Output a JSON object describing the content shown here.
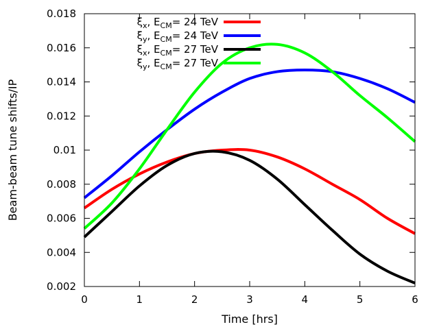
{
  "chart_data": {
    "type": "line",
    "title": "",
    "xlabel": "Time [hrs]",
    "ylabel": "Beam-beam tune shifts/IP",
    "xlim": [
      0,
      6
    ],
    "ylim": [
      0.002,
      0.018
    ],
    "xticks": [
      0,
      1,
      2,
      3,
      4,
      5,
      6
    ],
    "xtick_labels": [
      "0",
      "1",
      "2",
      "3",
      "4",
      "5",
      "6"
    ],
    "yticks": [
      0.002,
      0.004,
      0.006,
      0.008,
      0.01,
      0.012,
      0.014,
      0.016,
      0.018
    ],
    "ytick_labels": [
      "0.002",
      "0.004",
      "0.006",
      "0.008",
      "0.01",
      "0.012",
      "0.014",
      "0.016",
      "0.018"
    ],
    "grid": false,
    "legend_position": "top-left",
    "series": [
      {
        "name": "ξx, ECM= 24 TeV",
        "legend": {
          "sym": "ξ",
          "sub": "x",
          "sep": ", E",
          "esub": "CM",
          "rest": "= 24 TeV"
        },
        "color": "#ff0000",
        "x": [
          0,
          0.5,
          1,
          1.5,
          2,
          2.5,
          3,
          3.5,
          4,
          4.5,
          5,
          5.5,
          6
        ],
        "y": [
          0.0066,
          0.0077,
          0.0086,
          0.0093,
          0.0098,
          0.01,
          0.01,
          0.0096,
          0.0089,
          0.008,
          0.0071,
          0.006,
          0.0051
        ]
      },
      {
        "name": "ξy, ECM= 24 TeV",
        "legend": {
          "sym": "ξ",
          "sub": "y",
          "sep": ", E",
          "esub": "CM",
          "rest": "= 24 TeV"
        },
        "color": "#0000ff",
        "x": [
          0,
          0.5,
          1,
          1.5,
          2,
          2.5,
          3,
          3.5,
          4,
          4.5,
          5,
          5.5,
          6
        ],
        "y": [
          0.0072,
          0.0085,
          0.0099,
          0.0112,
          0.0124,
          0.0134,
          0.0142,
          0.0146,
          0.0147,
          0.0146,
          0.0142,
          0.0136,
          0.0128
        ]
      },
      {
        "name": "ξx, ECM= 27 TeV",
        "legend": {
          "sym": "ξ",
          "sub": "x",
          "sep": ", E",
          "esub": "CM",
          "rest": "= 27 TeV"
        },
        "color": "#000000",
        "x": [
          0,
          0.5,
          1,
          1.5,
          2,
          2.5,
          3,
          3.5,
          4,
          4.5,
          5,
          5.5,
          6
        ],
        "y": [
          0.0049,
          0.0064,
          0.0079,
          0.0091,
          0.0098,
          0.0099,
          0.0094,
          0.0083,
          0.0068,
          0.0053,
          0.0039,
          0.0029,
          0.0022
        ]
      },
      {
        "name": "ξy, ECM= 27 TeV",
        "legend": {
          "sym": "ξ",
          "sub": "y",
          "sep": ", E",
          "esub": "CM",
          "rest": "= 27 TeV"
        },
        "color": "#00ff00",
        "x": [
          0,
          0.5,
          1,
          1.5,
          2,
          2.5,
          3,
          3.5,
          4,
          4.5,
          5,
          5.5,
          6
        ],
        "y": [
          0.0054,
          0.0069,
          0.0089,
          0.0112,
          0.0134,
          0.0151,
          0.016,
          0.0162,
          0.0157,
          0.0146,
          0.0132,
          0.0119,
          0.0105
        ]
      }
    ]
  }
}
